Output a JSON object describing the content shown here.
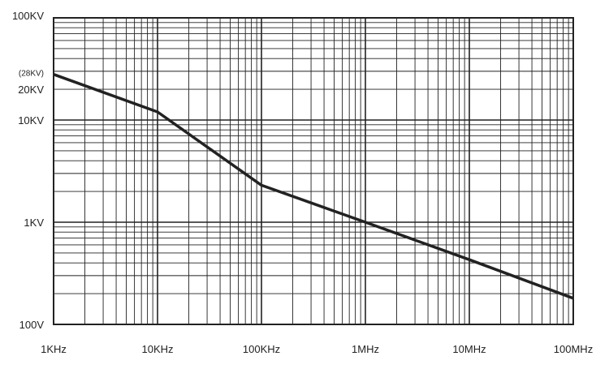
{
  "chart_data": {
    "type": "line",
    "title": "",
    "xlabel": "",
    "ylabel": "",
    "xscale": "log",
    "yscale": "log",
    "xlim_hz": [
      1000,
      100000000
    ],
    "ylim_v": [
      100,
      100000
    ],
    "grid": true,
    "x_ticks": [
      {
        "value": 1000,
        "label": "1KHz"
      },
      {
        "value": 10000,
        "label": "10KHz"
      },
      {
        "value": 100000,
        "label": "100KHz"
      },
      {
        "value": 1000000,
        "label": "1MHz"
      },
      {
        "value": 10000000,
        "label": "10MHz"
      },
      {
        "value": 100000000,
        "label": "100MHz"
      }
    ],
    "y_ticks": [
      {
        "value": 100,
        "label": "100V"
      },
      {
        "value": 1000,
        "label": "1KV"
      },
      {
        "value": 10000,
        "label": "10KV"
      },
      {
        "value": 20000,
        "label": "20KV"
      },
      {
        "value": 100000,
        "label": "100KV"
      }
    ],
    "annotations": [
      {
        "text": "(28KV)",
        "value": 28000
      }
    ],
    "series": [
      {
        "x": [
          1000,
          10000,
          100000,
          1000000,
          10000000,
          100000000
        ],
        "y": [
          28000,
          12000,
          2300,
          1000,
          430,
          180
        ]
      }
    ],
    "colors": {
      "line": "#222222",
      "grid": "#222222",
      "frame": "#222222"
    }
  }
}
